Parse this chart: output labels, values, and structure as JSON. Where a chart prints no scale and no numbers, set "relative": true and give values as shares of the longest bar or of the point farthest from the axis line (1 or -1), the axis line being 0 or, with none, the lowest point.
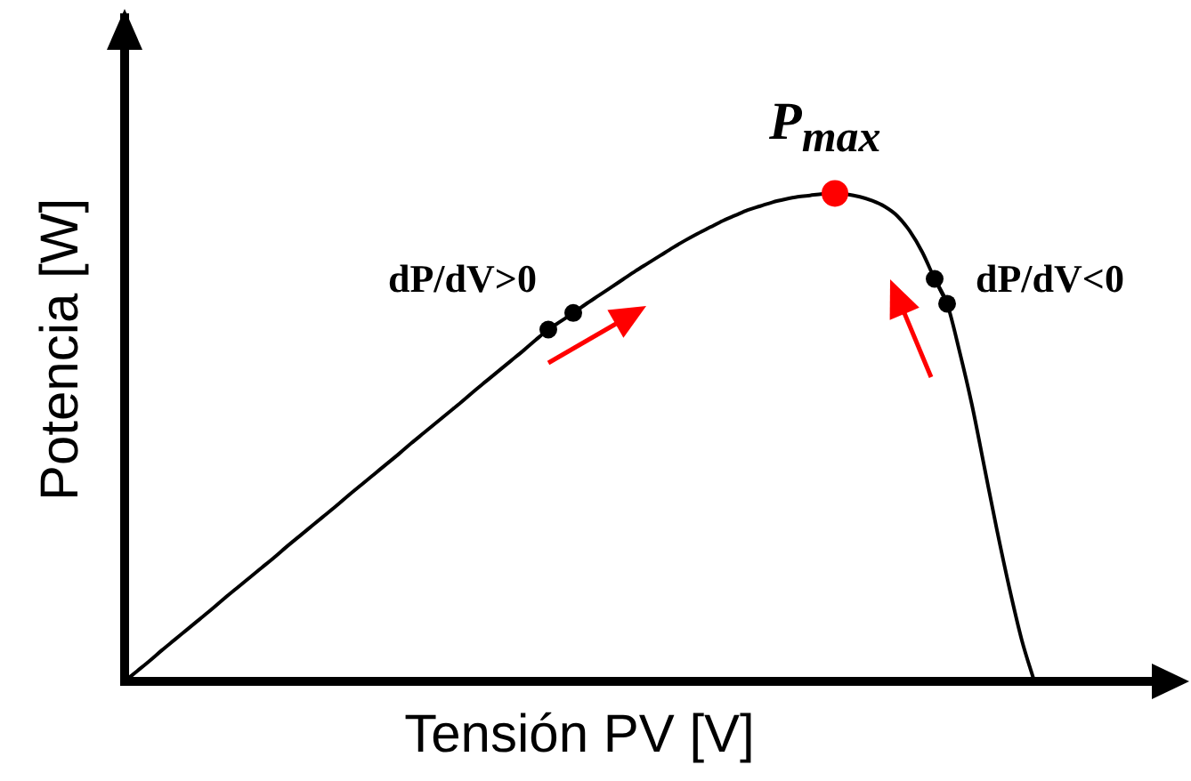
{
  "chart_data": {
    "type": "line",
    "relative": true,
    "xlabel": "Tensión PV [V]",
    "ylabel": "Potencia [W]",
    "categories": [
      null,
      null,
      null,
      null,
      null,
      null,
      null,
      null,
      null,
      null,
      null,
      null,
      null,
      null,
      null,
      null,
      null,
      null,
      null,
      null,
      null,
      null,
      null,
      null,
      null,
      null,
      null,
      null,
      null,
      null,
      null,
      null,
      null,
      null,
      null,
      null,
      null,
      null,
      null,
      null,
      null,
      null,
      null,
      null,
      null,
      null,
      null,
      null,
      null,
      null,
      null,
      null,
      null,
      null,
      null,
      null,
      null,
      null,
      null,
      null,
      null,
      null,
      null,
      null,
      null,
      null,
      null,
      null,
      null,
      null,
      null,
      null,
      null,
      null
    ],
    "series": [
      {
        "color": "#000000",
        "marker": "none",
        "values": [
          0,
          0.021,
          0.042,
          0.064,
          0.085,
          0.106,
          0.127,
          0.148,
          0.17,
          0.191,
          0.212,
          0.233,
          0.254,
          0.276,
          0.297,
          0.318,
          0.339,
          0.36,
          0.382,
          0.403,
          0.424,
          0.445,
          0.466,
          0.488,
          0.509,
          0.53,
          0.551,
          0.572,
          0.594,
          0.615,
          0.636,
          0.657,
          0.678,
          0.7,
          0.721,
          0.738,
          0.755,
          0.773,
          0.79,
          0.807,
          0.824,
          0.841,
          0.857,
          0.873,
          0.889,
          0.904,
          0.918,
          0.931,
          0.944,
          0.955,
          0.966,
          0.974,
          0.982,
          0.988,
          0.993,
          0.996,
          0.999,
          1,
          0.998,
          0.993,
          0.985,
          0.973,
          0.954,
          0.923,
          0.88,
          0.825,
          0.774,
          0.676,
          0.566,
          0.438,
          0.31,
          0.191,
          0.084,
          0
        ]
      },
      {
        "color": "#ff0000",
        "marker": "circle",
        "values": [
          null,
          null,
          null,
          null,
          null,
          null,
          null,
          null,
          null,
          null,
          null,
          null,
          null,
          null,
          null,
          null,
          null,
          null,
          null,
          null,
          null,
          null,
          null,
          null,
          null,
          null,
          null,
          null,
          null,
          null,
          null,
          null,
          null,
          null,
          null,
          null,
          null,
          null,
          null,
          null,
          null,
          null,
          null,
          null,
          null,
          null,
          null,
          null,
          null,
          null,
          null,
          null,
          null,
          null,
          null,
          null,
          null,
          1,
          null,
          null,
          null,
          null,
          null,
          null,
          null,
          null,
          null,
          null,
          null,
          null,
          null,
          null,
          null,
          null
        ]
      },
      {
        "color": "#000000",
        "marker": "circle",
        "values": [
          null,
          null,
          null,
          null,
          null,
          null,
          null,
          null,
          null,
          null,
          null,
          null,
          null,
          null,
          null,
          null,
          null,
          null,
          null,
          null,
          null,
          null,
          null,
          null,
          null,
          null,
          null,
          null,
          null,
          null,
          null,
          null,
          null,
          null,
          0.721,
          null,
          0.755,
          null,
          null,
          null,
          null,
          null,
          null,
          null,
          null,
          null,
          null,
          null,
          null,
          null,
          null,
          null,
          null,
          null,
          null,
          null,
          null,
          null,
          null,
          null,
          null,
          null,
          null,
          null,
          null,
          0.825,
          0.774,
          null,
          null,
          null,
          null,
          null,
          null,
          null
        ]
      }
    ],
    "annotations": [
      "P$_{max}$",
      "dP/dV>0",
      "dP/dV<0"
    ]
  }
}
